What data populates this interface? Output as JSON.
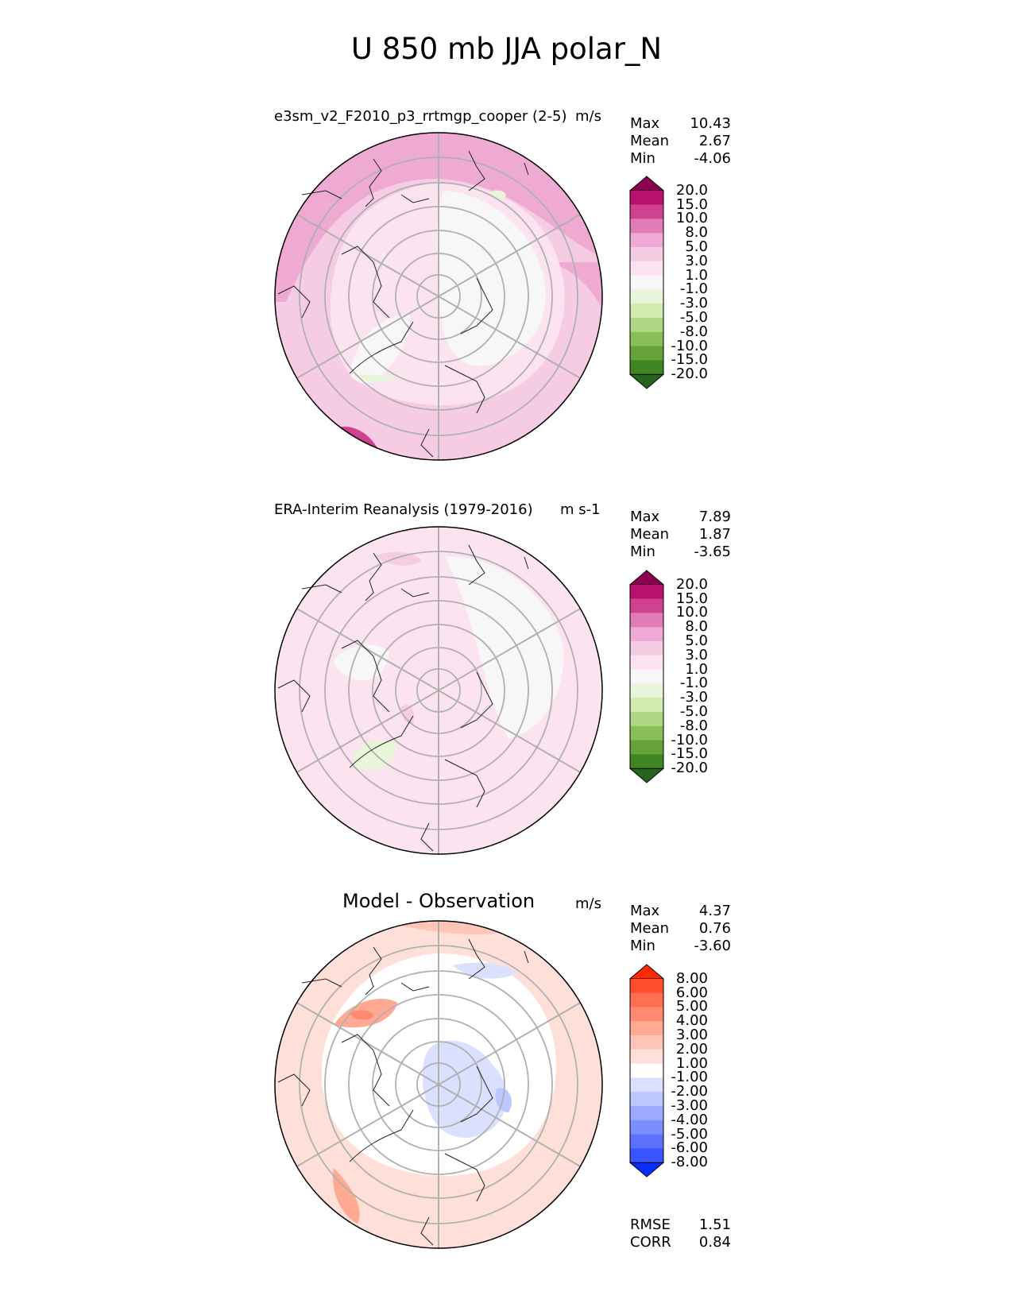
{
  "figure_title": "U 850 mb JJA polar_N",
  "panels": [
    {
      "title": "e3sm_v2_F2010_p3_rrtmgp_cooper (2-5)",
      "units": "m/s",
      "stats": [
        [
          "Max",
          "10.43"
        ],
        [
          "Mean",
          "2.67"
        ],
        [
          "Min",
          "-4.06"
        ]
      ],
      "colorbar_labels": [
        "20.0",
        "15.0",
        "10.0",
        "8.0",
        "5.0",
        "3.0",
        "1.0",
        "-1.0",
        "-3.0",
        "-5.0",
        "-8.0",
        "-10.0",
        "-15.0",
        "-20.0"
      ]
    },
    {
      "title": "ERA-Interim Reanalysis (1979-2016)",
      "units": "m s-1",
      "stats": [
        [
          "Max",
          "7.89"
        ],
        [
          "Mean",
          "1.87"
        ],
        [
          "Min",
          "-3.65"
        ]
      ],
      "colorbar_labels": [
        "20.0",
        "15.0",
        "10.0",
        "8.0",
        "5.0",
        "3.0",
        "1.0",
        "-1.0",
        "-3.0",
        "-5.0",
        "-8.0",
        "-10.0",
        "-15.0",
        "-20.0"
      ]
    },
    {
      "title": "Model - Observation",
      "units": "m/s",
      "stats": [
        [
          "Max",
          "4.37"
        ],
        [
          "Mean",
          "0.76"
        ],
        [
          "Min",
          "-3.60"
        ]
      ],
      "colorbar_labels": [
        "8.00",
        "6.00",
        "5.00",
        "4.00",
        "3.00",
        "2.00",
        "1.00",
        "-1.00",
        "-2.00",
        "-3.00",
        "-4.00",
        "-5.00",
        "-6.00",
        "-8.00"
      ],
      "extra_stats": [
        [
          "RMSE",
          "1.51"
        ],
        [
          "CORR",
          "0.84"
        ]
      ]
    }
  ],
  "colors": {
    "pink_green": [
      "#8e0152",
      "#b8116e",
      "#d0418f",
      "#e07cb5",
      "#eeaad3",
      "#f6cce5",
      "#fbe4f0",
      "#f7f7f7",
      "#e9f5d9",
      "#d0ecb0",
      "#aed783",
      "#88c057",
      "#64a338",
      "#3f8526",
      "#26651b"
    ],
    "blue_red": [
      "#ff2a00",
      "#ff4f2a",
      "#ff6e50",
      "#ff8a6f",
      "#ffa892",
      "#ffc5b7",
      "#ffe0d8",
      "#ffffff",
      "#dbe0ff",
      "#bcc7ff",
      "#9cabff",
      "#7c8eff",
      "#5c72ff",
      "#3a55ff",
      "#0a2dff"
    ]
  }
}
